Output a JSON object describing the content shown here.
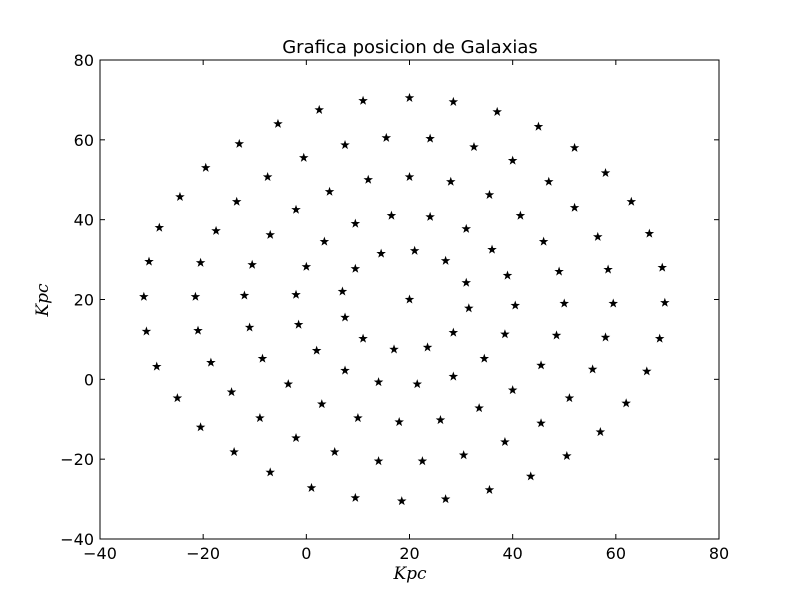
{
  "chart_data": {
    "type": "scatter",
    "title": "Grafica posicion de Galaxias",
    "xlabel": "Kpc",
    "ylabel": "Kpc",
    "xlim": [
      -40,
      80
    ],
    "ylim": [
      -40,
      80
    ],
    "xticks": [
      -40,
      -20,
      0,
      20,
      40,
      60,
      80
    ],
    "yticks": [
      -40,
      -20,
      0,
      20,
      40,
      60,
      80
    ],
    "xtick_labels": [
      "−40",
      "−20",
      "0",
      "20",
      "40",
      "60",
      "80"
    ],
    "ytick_labels": [
      "−40",
      "−20",
      "0",
      "20",
      "40",
      "60",
      "80"
    ],
    "marker": "star",
    "marker_color": "#000000",
    "grid": false,
    "points": [
      [
        20,
        70.5
      ],
      [
        11,
        69.8
      ],
      [
        28.5,
        69.5
      ],
      [
        2.5,
        67.5
      ],
      [
        37,
        67
      ],
      [
        -5.5,
        64
      ],
      [
        45,
        63.3
      ],
      [
        15.5,
        60.5
      ],
      [
        24,
        60.3
      ],
      [
        -13,
        59
      ],
      [
        7.5,
        58.7
      ],
      [
        32.5,
        58.2
      ],
      [
        52,
        58
      ],
      [
        -0.5,
        55.5
      ],
      [
        40,
        54.8
      ],
      [
        -19.5,
        53
      ],
      [
        58,
        51.7
      ],
      [
        -7.5,
        50.7
      ],
      [
        20,
        50.7
      ],
      [
        12,
        50
      ],
      [
        28,
        49.5
      ],
      [
        47,
        49.5
      ],
      [
        4.5,
        47
      ],
      [
        35.5,
        46.2
      ],
      [
        -24.5,
        45.7
      ],
      [
        -13.5,
        44.5
      ],
      [
        63,
        44.5
      ],
      [
        52,
        43
      ],
      [
        -2,
        42.5
      ],
      [
        16.5,
        41
      ],
      [
        24,
        40.7
      ],
      [
        41.5,
        41
      ],
      [
        9.5,
        39
      ],
      [
        31,
        37.7
      ],
      [
        -28.5,
        38
      ],
      [
        -17.5,
        37.2
      ],
      [
        -7,
        36.2
      ],
      [
        66.5,
        36.5
      ],
      [
        56.5,
        35.7
      ],
      [
        46,
        34.5
      ],
      [
        3.5,
        34.5
      ],
      [
        36,
        32.5
      ],
      [
        21,
        32.2
      ],
      [
        14.5,
        31.5
      ],
      [
        27,
        29.7
      ],
      [
        -30.5,
        29.5
      ],
      [
        -20.5,
        29.2
      ],
      [
        -10.5,
        28.7
      ],
      [
        0,
        28.2
      ],
      [
        9.5,
        27.7
      ],
      [
        69,
        28
      ],
      [
        58.5,
        27.5
      ],
      [
        49,
        27
      ],
      [
        39,
        26
      ],
      [
        31,
        24.2
      ],
      [
        7,
        22
      ],
      [
        -2,
        21.2
      ],
      [
        -12,
        21
      ],
      [
        -21.5,
        20.7
      ],
      [
        -31.5,
        20.7
      ],
      [
        20,
        20
      ],
      [
        69.5,
        19.2
      ],
      [
        59.5,
        19
      ],
      [
        50,
        19
      ],
      [
        40.5,
        18.5
      ],
      [
        31.5,
        17.8
      ],
      [
        7.5,
        15.5
      ],
      [
        -1.5,
        13.7
      ],
      [
        -11,
        13
      ],
      [
        -21,
        12.2
      ],
      [
        -31,
        12
      ],
      [
        28.5,
        11.7
      ],
      [
        38.5,
        11.3
      ],
      [
        48.5,
        11
      ],
      [
        58,
        10.5
      ],
      [
        68.5,
        10.2
      ],
      [
        11,
        10.2
      ],
      [
        23.5,
        8
      ],
      [
        17,
        7.5
      ],
      [
        2,
        7.2
      ],
      [
        34.5,
        5.2
      ],
      [
        -8.5,
        5.2
      ],
      [
        -18.5,
        4.2
      ],
      [
        -29,
        3.2
      ],
      [
        45.5,
        3.5
      ],
      [
        55.5,
        2.5
      ],
      [
        66,
        2
      ],
      [
        7.5,
        2.2
      ],
      [
        28.5,
        0.7
      ],
      [
        14,
        -0.7
      ],
      [
        21.5,
        -1.2
      ],
      [
        -3.5,
        -1.2
      ],
      [
        40,
        -2.7
      ],
      [
        -14.5,
        -3.2
      ],
      [
        -25,
        -4.7
      ],
      [
        51,
        -4.7
      ],
      [
        62,
        -6
      ],
      [
        3,
        -6.2
      ],
      [
        33.5,
        -7.2
      ],
      [
        10,
        -9.7
      ],
      [
        -9,
        -9.7
      ],
      [
        26,
        -10.2
      ],
      [
        18,
        -10.7
      ],
      [
        45.5,
        -11
      ],
      [
        -20.5,
        -12
      ],
      [
        57,
        -13.2
      ],
      [
        -2,
        -14.7
      ],
      [
        38.5,
        -15.7
      ],
      [
        -14,
        -18.2
      ],
      [
        5.5,
        -18.2
      ],
      [
        30.5,
        -19
      ],
      [
        50.5,
        -19.2
      ],
      [
        14,
        -20.5
      ],
      [
        22.5,
        -20.5
      ],
      [
        -7,
        -23.3
      ],
      [
        43.5,
        -24.3
      ],
      [
        1,
        -27.2
      ],
      [
        35.5,
        -27.7
      ],
      [
        9.5,
        -29.7
      ],
      [
        27,
        -30
      ],
      [
        18.5,
        -30.5
      ]
    ]
  }
}
